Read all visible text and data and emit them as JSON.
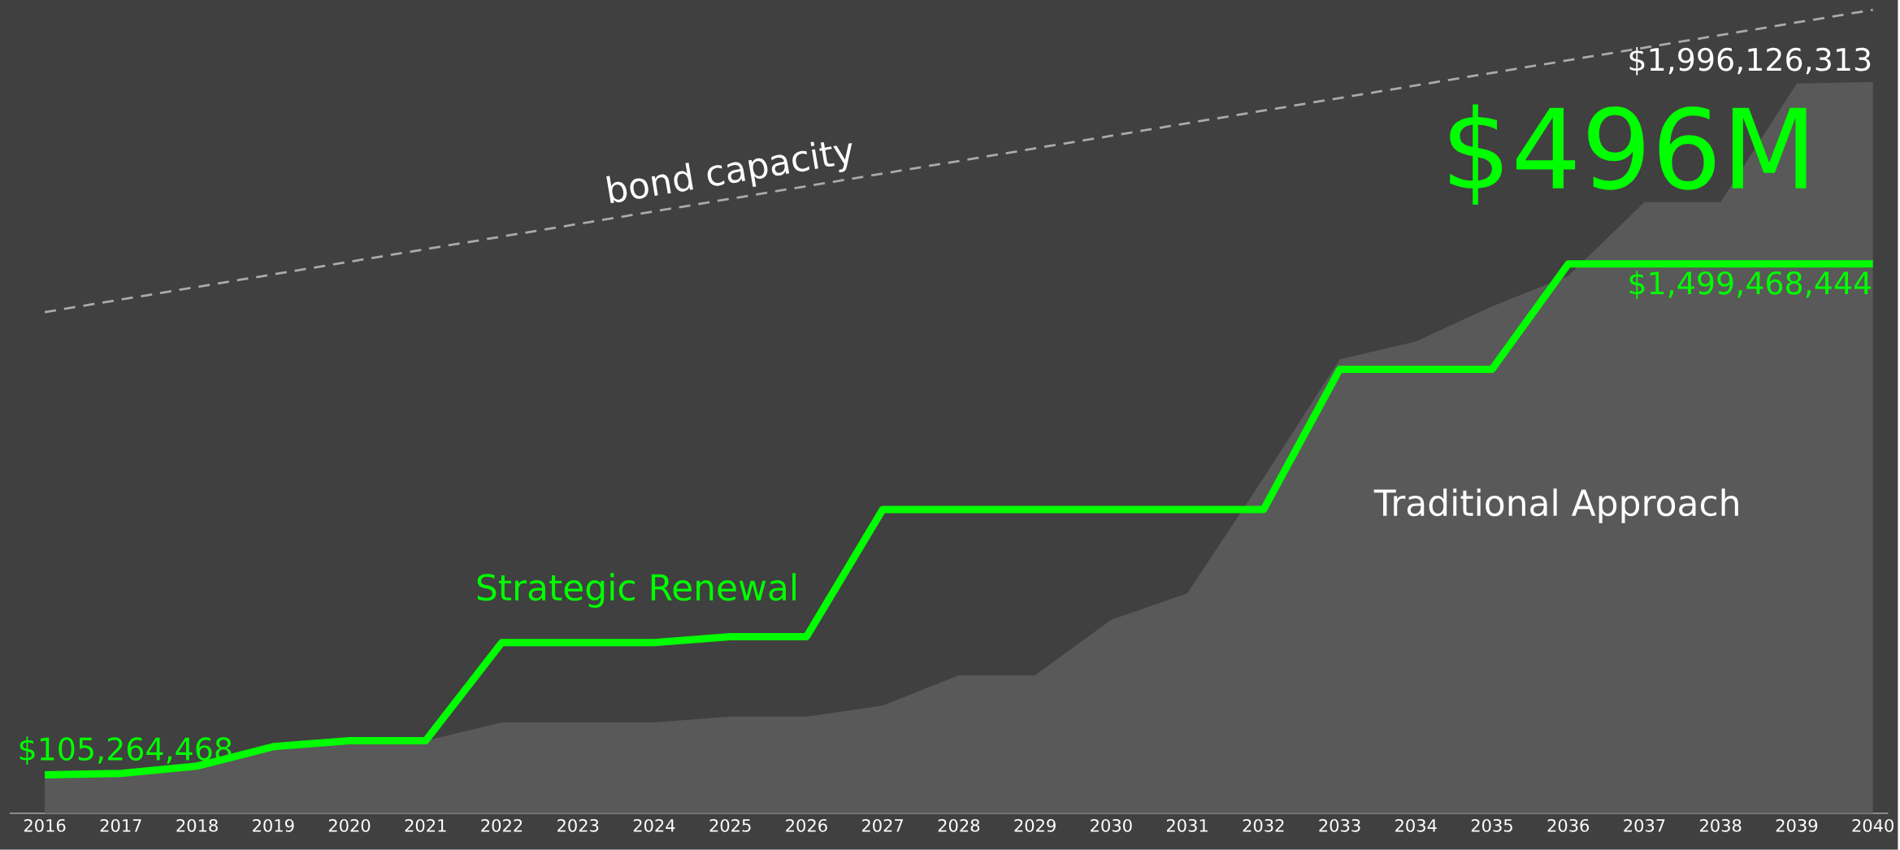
{
  "chart_data": {
    "type": "line",
    "x": [
      2016,
      2017,
      2018,
      2019,
      2020,
      2021,
      2022,
      2023,
      2024,
      2025,
      2026,
      2027,
      2028,
      2029,
      2030,
      2031,
      2032,
      2033,
      2034,
      2035,
      2036,
      2037,
      2038,
      2039,
      2040
    ],
    "xlim": [
      2015.54,
      2040.2
    ],
    "xticks": [
      2016,
      2017,
      2018,
      2019,
      2020,
      2021,
      2022,
      2023,
      2024,
      2025,
      2026,
      2027,
      2028,
      2029,
      2030,
      2031,
      2032,
      2033,
      2034,
      2035,
      2036,
      2037,
      2038,
      2039,
      2040
    ],
    "ylim": [
      0,
      2220000000
    ],
    "tick_labels": "x",
    "marker": "none",
    "series": [
      {
        "name": "Traditional Approach",
        "type": "area",
        "color": "#595959",
        "values": [
          105000000,
          109000000,
          129000000,
          182000000,
          198000000,
          198000000,
          248000000,
          248000000,
          248000000,
          264000000,
          264000000,
          294000000,
          377000000,
          377000000,
          528000000,
          601000000,
          915000000,
          1239000000,
          1288000000,
          1384000000,
          1467000000,
          1668000000,
          1668000000,
          1992000000,
          1996126313
        ],
        "value_labels": [
          null,
          null,
          null,
          null,
          null,
          null,
          null,
          null,
          null,
          null,
          null,
          null,
          null,
          null,
          null,
          null,
          null,
          null,
          null,
          null,
          null,
          null,
          null,
          null,
          "$1,996,126,313"
        ]
      },
      {
        "name": "bond capacity",
        "line_style": "dashed",
        "color": "#aaaaaa",
        "x": [
          2016,
          2040
        ],
        "values": [
          1368000000,
          2193000000
        ]
      },
      {
        "name": "Strategic Renewal",
        "line_style": "solid",
        "color": "#00ff00",
        "values": [
          105264468,
          109000000,
          129000000,
          182000000,
          198000000,
          198000000,
          466000000,
          466000000,
          466000000,
          482000000,
          482000000,
          829000000,
          829000000,
          829000000,
          829000000,
          829000000,
          829000000,
          1212000000,
          1212000000,
          1212000000,
          1499468444,
          1499468444,
          1499468444,
          1499468444,
          1499468444
        ],
        "value_labels": [
          "$105,264,468",
          null,
          null,
          null,
          null,
          null,
          null,
          null,
          null,
          null,
          null,
          null,
          null,
          null,
          null,
          null,
          null,
          null,
          null,
          null,
          null,
          null,
          null,
          null,
          "$1,499,468,444"
        ]
      }
    ],
    "annotations": [
      "$496M"
    ]
  }
}
